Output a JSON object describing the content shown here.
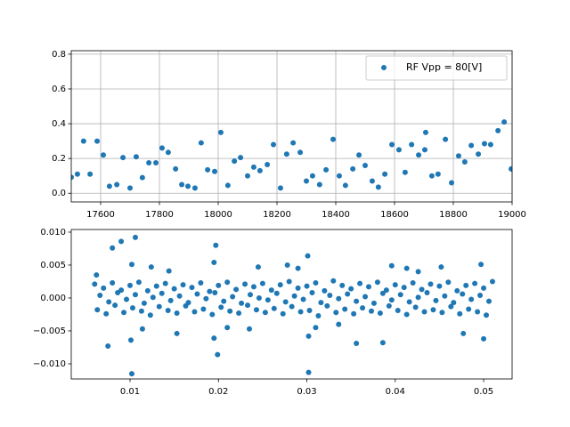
{
  "chart_data": [
    {
      "type": "scatter",
      "x": [
        17500,
        17521,
        17542,
        17564,
        17588,
        17609,
        17630,
        17655,
        17676,
        17700,
        17721,
        17742,
        17764,
        17788,
        17809,
        17830,
        17855,
        17876,
        17897,
        17921,
        17942,
        17964,
        17988,
        18009,
        18033,
        18055,
        18076,
        18100,
        18121,
        18142,
        18167,
        18188,
        18212,
        18233,
        18255,
        18279,
        18300,
        18321,
        18345,
        18367,
        18391,
        18412,
        18433,
        18458,
        18479,
        18500,
        18524,
        18545,
        18567,
        18591,
        18615,
        18636,
        18658,
        18682,
        18703,
        18706,
        18727,
        18748,
        18773,
        18794,
        18818,
        18839,
        18861,
        18885,
        18906,
        18927,
        18952,
        18973,
        18997
      ],
      "series": [
        {
          "name": "RF Vpp = 80[V]",
          "color": "#1f77b4",
          "values": [
            0.092,
            0.11,
            0.3,
            0.11,
            0.3,
            0.22,
            0.04,
            0.05,
            0.205,
            0.03,
            0.21,
            0.09,
            0.175,
            0.175,
            0.26,
            0.235,
            0.14,
            0.05,
            0.04,
            0.03,
            0.29,
            0.135,
            0.125,
            0.35,
            0.045,
            0.185,
            0.205,
            0.1,
            0.15,
            0.13,
            0.165,
            0.28,
            0.03,
            0.225,
            0.29,
            0.235,
            0.07,
            0.1,
            0.05,
            0.135,
            0.31,
            0.1,
            0.045,
            0.14,
            0.22,
            0.16,
            0.07,
            0.035,
            0.11,
            0.28,
            0.25,
            0.12,
            0.28,
            0.22,
            0.25,
            0.35,
            0.1,
            0.11,
            0.31,
            0.06,
            0.215,
            0.18,
            0.275,
            0.225,
            0.285,
            0.28,
            0.36,
            0.41,
            0.14
          ]
        }
      ],
      "xlim": [
        17500,
        19000
      ],
      "xticks": [
        17600,
        17800,
        18000,
        18200,
        18400,
        18600,
        18800,
        19000
      ],
      "ylim": [
        -0.05,
        0.82
      ],
      "yticks": [
        {
          "value": 0,
          "label": "0.0"
        },
        0.2,
        0.4,
        0.6,
        0.8
      ],
      "grid": true,
      "legend": "upper right"
    },
    {
      "type": "scatter",
      "color": "#1f77b4",
      "x": [
        0.006,
        0.007,
        0.008,
        0.009,
        0.01,
        0.011,
        0.012,
        0.013,
        0.014,
        0.015,
        0.016,
        0.017,
        0.018,
        0.019,
        0.02,
        0.021,
        0.022,
        0.023,
        0.024,
        0.025,
        0.026,
        0.027,
        0.028,
        0.029,
        0.03,
        0.031,
        0.032,
        0.033,
        0.034,
        0.035,
        0.036,
        0.037,
        0.038,
        0.039,
        0.04,
        0.041,
        0.042,
        0.043,
        0.044,
        0.045,
        0.046,
        0.047,
        0.048,
        0.049,
        0.05,
        0.051,
        0.0063,
        0.0073,
        0.0083,
        0.0093,
        0.0103,
        0.0113,
        0.0123,
        0.0133,
        0.0143,
        0.0153,
        0.0163,
        0.0173,
        0.0183,
        0.0193,
        0.0203,
        0.0213,
        0.0223,
        0.0233,
        0.0243,
        0.0253,
        0.0263,
        0.0273,
        0.0283,
        0.0293,
        0.0303,
        0.0313,
        0.0323,
        0.0333,
        0.0343,
        0.0353,
        0.0363,
        0.0373,
        0.0383,
        0.0393,
        0.0403,
        0.0413,
        0.0423,
        0.0433,
        0.0443,
        0.0453,
        0.0463,
        0.0473,
        0.0483,
        0.0493,
        0.0503,
        0.0066,
        0.0076,
        0.0086,
        0.0096,
        0.0106,
        0.0116,
        0.0126,
        0.0136,
        0.0146,
        0.0156,
        0.0166,
        0.0176,
        0.0186,
        0.0196,
        0.0206,
        0.0216,
        0.0226,
        0.0236,
        0.0246,
        0.0256,
        0.0266,
        0.0276,
        0.0286,
        0.0296,
        0.0306,
        0.0316,
        0.0326,
        0.0336,
        0.0346,
        0.0356,
        0.0366,
        0.0376,
        0.0386,
        0.0396,
        0.0406,
        0.0416,
        0.0426,
        0.0436,
        0.0446,
        0.0456,
        0.0466,
        0.0476,
        0.0486,
        0.0496,
        0.0506,
        0.008,
        0.009,
        0.0106,
        0.0102,
        0.0102,
        0.0075,
        0.0101,
        0.0197,
        0.0195,
        0.0199,
        0.0195,
        0.0153,
        0.0301,
        0.0302,
        0.0278,
        0.0302,
        0.0356,
        0.0386,
        0.0413,
        0.0497,
        0.05,
        0.0452,
        0.0062,
        0.0245,
        0.0144,
        0.0235,
        0.0336,
        0.0477,
        0.0124,
        0.0114,
        0.0396,
        0.029,
        0.031,
        0.021,
        0.0426
      ],
      "values": [
        0.0021,
        0.0015,
        0.0023,
        0.0012,
        0.0019,
        0.0024,
        0.0011,
        0.0018,
        0.0022,
        0.0014,
        0.002,
        0.0016,
        0.0023,
        0.001,
        0.0019,
        0.0024,
        0.0013,
        0.0021,
        0.0017,
        0.0022,
        0.0012,
        0.002,
        0.0025,
        0.0015,
        0.0018,
        0.0023,
        0.0011,
        0.0026,
        0.0019,
        0.0014,
        0.0022,
        0.0017,
        0.0024,
        0.0012,
        0.002,
        0.0016,
        0.0023,
        0.0013,
        0.0021,
        0.0018,
        0.0024,
        0.0011,
        0.0019,
        0.0022,
        0.0015,
        0.0025,
        -0.0018,
        -0.0024,
        -0.0011,
        -0.0022,
        -0.0015,
        -0.002,
        -0.0026,
        -0.0013,
        -0.0019,
        -0.0023,
        -0.0012,
        -0.0021,
        -0.0017,
        -0.0025,
        -0.0014,
        -0.002,
        -0.0023,
        -0.0011,
        -0.0018,
        -0.0022,
        -0.0016,
        -0.0024,
        -0.0013,
        -0.0021,
        -0.0019,
        -0.0027,
        -0.0012,
        -0.0022,
        -0.0017,
        -0.0024,
        -0.0015,
        -0.002,
        -0.0023,
        -0.0012,
        -0.0019,
        -0.0025,
        -0.0014,
        -0.0021,
        -0.0018,
        -0.0022,
        -0.0013,
        -0.0024,
        -0.0017,
        -0.0021,
        -0.0026,
        0.0004,
        -0.0006,
        0.0008,
        -0.0002,
        0.0005,
        -0.0008,
        0.0001,
        0.0007,
        -0.0004,
        0.0003,
        -0.0007,
        0.0006,
        -0.0001,
        0.0008,
        -0.0005,
        0.0002,
        -0.0008,
        0.0005,
        0,
        -0.0003,
        0.0007,
        -0.0006,
        0.0003,
        -0.0002,
        0.0008,
        -0.0007,
        0.0004,
        -0.0001,
        0.0006,
        -0.0005,
        0.0002,
        -0.0008,
        0.0007,
        -0.0003,
        0.0005,
        -0.0006,
        0.0001,
        0.0008,
        -0.0004,
        0.0003,
        -0.0007,
        0.0006,
        -0.0002,
        0.0004,
        -0.0005,
        0.0076,
        0.0086,
        0.0092,
        0.0051,
        -0.0115,
        -0.0073,
        -0.0064,
        0.008,
        0.0054,
        -0.0086,
        -0.0061,
        -0.0054,
        0.0064,
        -0.0113,
        0.005,
        -0.0058,
        -0.0069,
        -0.0068,
        0.0045,
        0.0051,
        -0.0062,
        0.0047,
        0.0035,
        0.0047,
        0.0041,
        -0.0047,
        -0.004,
        -0.0054,
        0.0047,
        -0.0047,
        0.0049,
        0.0045,
        -0.0045,
        -0.0045,
        0.004
      ],
      "xlim": [
        0.00335,
        0.05322
      ],
      "xticks": [
        0.01,
        0.02,
        0.03,
        0.04,
        0.05
      ],
      "ylim": [
        -0.0123,
        0.0104
      ],
      "yticks": [
        {
          "value": -0.01,
          "label": "−0.010"
        },
        {
          "value": -0.005,
          "label": "−0.005"
        },
        {
          "value": 0,
          "label": "0.000"
        },
        {
          "value": 0.005,
          "label": "0.005"
        },
        {
          "value": 0.01,
          "label": "0.010"
        }
      ],
      "grid": false
    }
  ]
}
